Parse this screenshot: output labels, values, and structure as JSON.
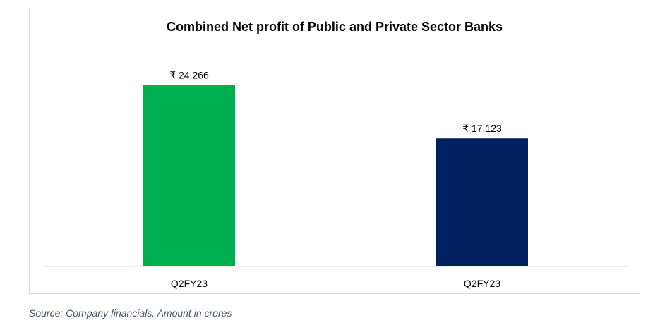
{
  "chart_data": {
    "type": "bar",
    "title": "Combined Net profit of Public and Private Sector Banks",
    "categories": [
      "Q2FY23",
      "Q2FY23"
    ],
    "values": [
      24266,
      17123
    ],
    "data_labels": [
      "₹ 24,266",
      "₹ 17,123"
    ],
    "bar_colors": [
      "#00b050",
      "#002060"
    ],
    "ylim": [
      0,
      26000
    ],
    "grid": false,
    "legend": "none",
    "xlabel": "",
    "ylabel": ""
  },
  "footer": {
    "source_note": "Source: Company financials. Amount in crores"
  }
}
